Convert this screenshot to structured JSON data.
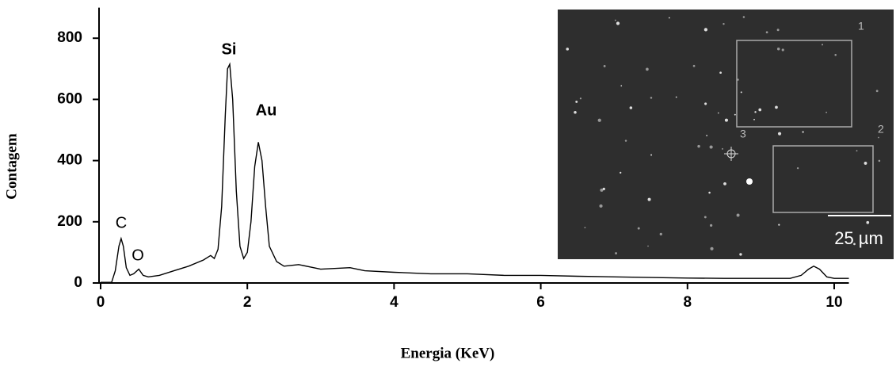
{
  "chart_data": {
    "type": "line",
    "x_label": "Energia (KeV)",
    "y_label": "Contagem",
    "x": [
      0,
      0.15,
      0.2,
      0.25,
      0.28,
      0.31,
      0.35,
      0.4,
      0.45,
      0.52,
      0.58,
      0.65,
      0.8,
      1.0,
      1.2,
      1.4,
      1.5,
      1.55,
      1.6,
      1.65,
      1.7,
      1.73,
      1.76,
      1.8,
      1.85,
      1.9,
      1.95,
      2.0,
      2.05,
      2.1,
      2.15,
      2.2,
      2.25,
      2.3,
      2.4,
      2.5,
      2.7,
      3.0,
      3.4,
      3.6,
      4.0,
      4.5,
      5.0,
      5.5,
      6.0,
      6.5,
      7.0,
      7.5,
      8.0,
      8.5,
      9.0,
      9.4,
      9.55,
      9.65,
      9.72,
      9.8,
      9.9,
      10.0,
      10.2
    ],
    "values": [
      2,
      2,
      40,
      120,
      145,
      120,
      50,
      25,
      30,
      45,
      25,
      20,
      25,
      40,
      55,
      75,
      90,
      80,
      110,
      250,
      550,
      700,
      715,
      600,
      300,
      120,
      80,
      100,
      200,
      380,
      460,
      400,
      250,
      120,
      70,
      55,
      60,
      45,
      50,
      40,
      35,
      30,
      30,
      25,
      25,
      22,
      20,
      18,
      16,
      15,
      15,
      15,
      25,
      45,
      55,
      45,
      20,
      15,
      15
    ],
    "color": "#000000",
    "xlim": [
      0,
      10.2
    ],
    "xticks": [
      0,
      2,
      4,
      6,
      8,
      10
    ],
    "ylim": [
      0,
      900
    ],
    "yticks": [
      0,
      200,
      400,
      600,
      800
    ],
    "annotations": [
      "C",
      "O",
      "Si",
      "Au"
    ]
  },
  "inset": {
    "region_labels": [
      "1",
      "2",
      "3"
    ],
    "scale_bar": "25 µm"
  }
}
